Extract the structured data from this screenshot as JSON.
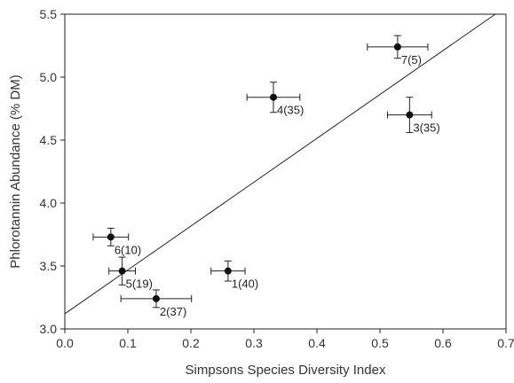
{
  "chart_data": {
    "type": "scatter",
    "title": "",
    "xlabel": "Simpsons Species Diversity Index",
    "ylabel": "Phlorotannin Abundance (% DM)",
    "xlim": [
      0.0,
      0.7
    ],
    "ylim": [
      3.0,
      5.5
    ],
    "xticks": [
      0.0,
      0.1,
      0.2,
      0.3,
      0.4,
      0.5,
      0.6,
      0.7
    ],
    "xtick_labels": [
      "0.0",
      "0.1",
      "0.2",
      "0.3",
      "0.4",
      "0.5",
      "0.6",
      "0.7"
    ],
    "yticks": [
      3.0,
      3.5,
      4.0,
      4.5,
      5.0,
      5.5
    ],
    "ytick_labels": [
      "3.0",
      "3.5",
      "4.0",
      "4.5",
      "5.0",
      "5.5"
    ],
    "grid": false,
    "points": [
      {
        "label": "1(40)",
        "x": 0.259,
        "y": 3.46,
        "xerr": 0.027,
        "yerr": 0.08
      },
      {
        "label": "2(37)",
        "x": 0.145,
        "y": 3.24,
        "xerr": 0.056,
        "yerr": 0.07
      },
      {
        "label": "3(35)",
        "x": 0.547,
        "y": 4.7,
        "xerr": 0.035,
        "yerr": 0.14
      },
      {
        "label": "4(35)",
        "x": 0.331,
        "y": 4.84,
        "xerr": 0.042,
        "yerr": 0.12
      },
      {
        "label": "5(19)",
        "x": 0.091,
        "y": 3.46,
        "xerr": 0.021,
        "yerr": 0.11
      },
      {
        "label": "6(10)",
        "x": 0.073,
        "y": 3.73,
        "xerr": 0.028,
        "yerr": 0.07
      },
      {
        "label": "7(5)",
        "x": 0.528,
        "y": 5.24,
        "xerr": 0.048,
        "yerr": 0.09
      }
    ],
    "regression_line": {
      "x": [
        0.0,
        0.683
      ],
      "y": [
        3.12,
        5.5
      ]
    }
  }
}
